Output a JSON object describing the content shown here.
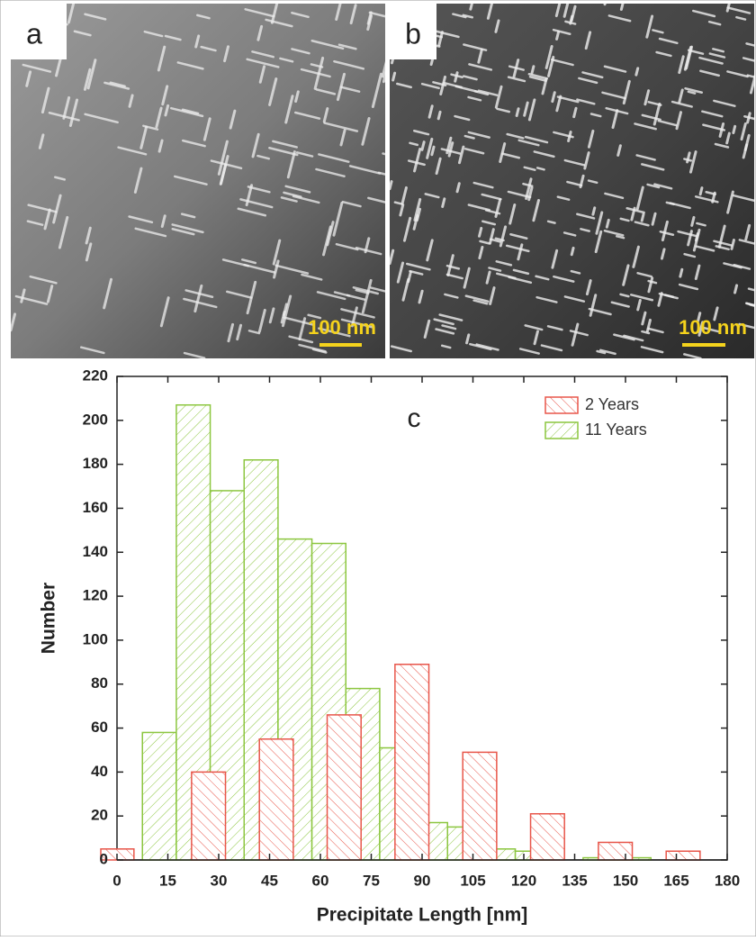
{
  "panels": [
    {
      "label": "a",
      "scale_bar": "100 nm"
    },
    {
      "label": "b",
      "scale_bar": "100 nm"
    }
  ],
  "chart_data": {
    "type": "histogram",
    "annotation": "c",
    "x_label": "Precipitate Length [nm]",
    "y_label": "Number",
    "xlim": [
      0,
      180
    ],
    "xticks": [
      0,
      15,
      30,
      45,
      60,
      75,
      90,
      105,
      120,
      135,
      150,
      165,
      180
    ],
    "ylim": [
      0,
      220
    ],
    "yticks": [
      0,
      20,
      40,
      60,
      80,
      100,
      120,
      140,
      160,
      180,
      200,
      220
    ],
    "legend": "upper right",
    "series": [
      {
        "name": "2 Years",
        "color": "#e8564a",
        "bins": [
          -5,
          5,
          22,
          32,
          42,
          52,
          62,
          72,
          82,
          92,
          102,
          112,
          122,
          132,
          142,
          152,
          162,
          172
        ],
        "values": [
          5,
          0,
          40,
          0,
          55,
          0,
          66,
          0,
          89,
          0,
          49,
          0,
          21,
          0,
          8,
          0,
          4
        ]
      },
      {
        "name": "11 Years",
        "color": "#8cc63f",
        "bins": [
          7.5,
          17.5,
          27.5,
          37.5,
          47.5,
          57.5,
          67.5,
          77.5,
          87.5,
          97.5,
          107.5,
          117.5,
          127.5,
          137.5,
          147.5,
          157.5
        ],
        "values": [
          58,
          207,
          168,
          182,
          146,
          144,
          78,
          51,
          17,
          15,
          5,
          4,
          0,
          1,
          1
        ]
      }
    ]
  }
}
